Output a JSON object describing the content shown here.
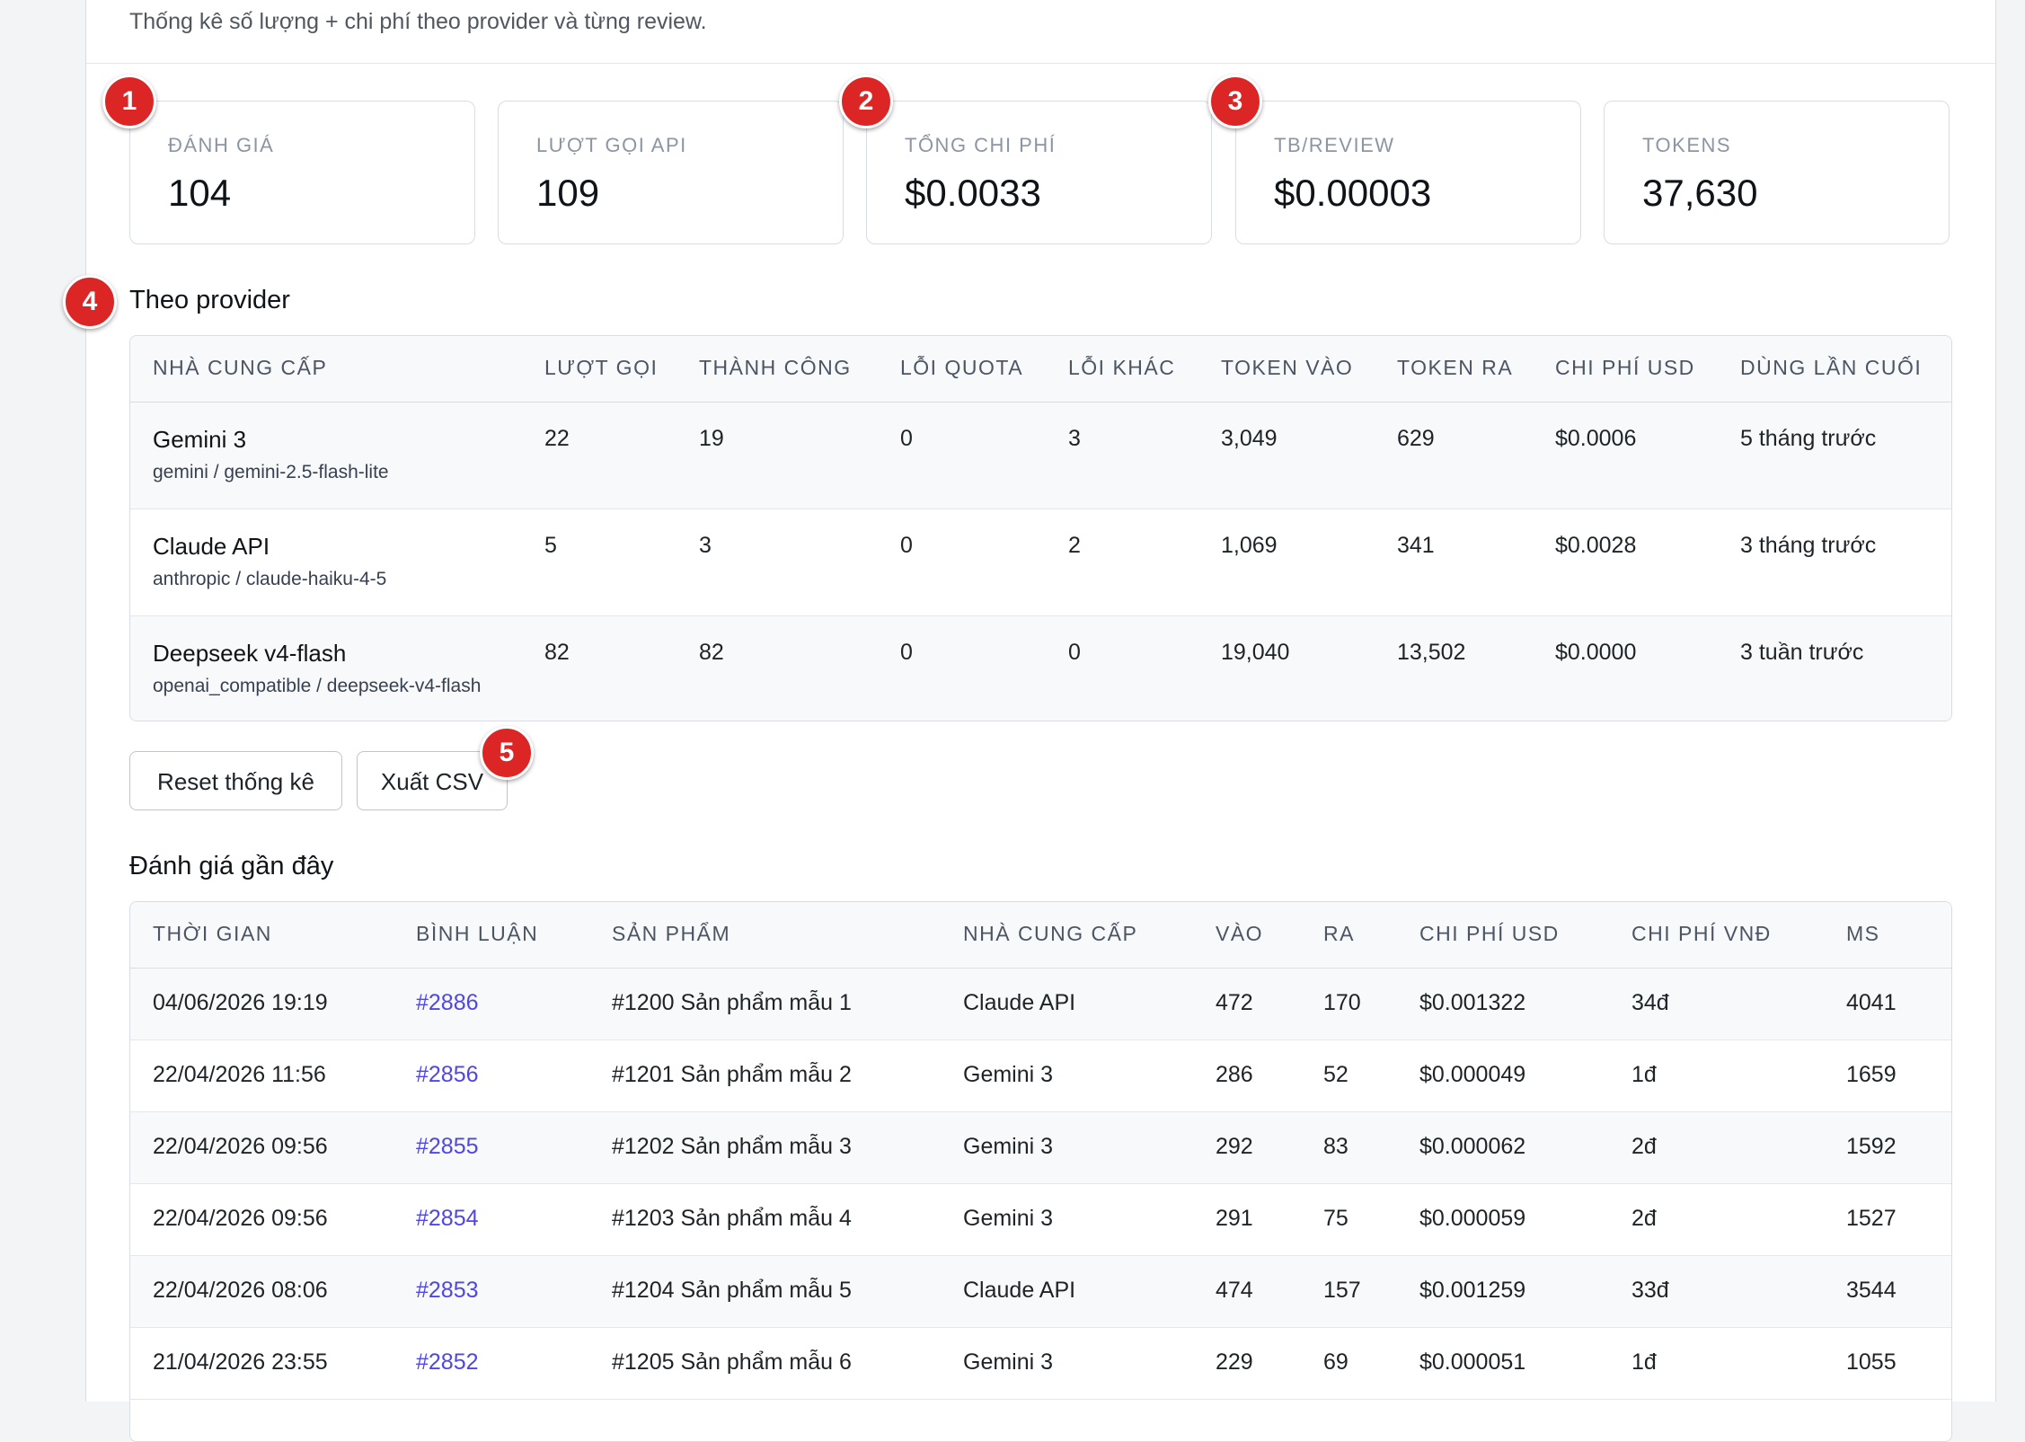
{
  "header": {
    "subtitle": "Thống kê số lượng + chi phí theo provider và từng review."
  },
  "stats": [
    {
      "label": "ĐÁNH GIÁ",
      "value": "104"
    },
    {
      "label": "LƯỢT GỌI API",
      "value": "109"
    },
    {
      "label": "TỔNG CHI PHÍ",
      "value": "$0.0033"
    },
    {
      "label": "TB/REVIEW",
      "value": "$0.00003"
    },
    {
      "label": "TOKENS",
      "value": "37,630"
    }
  ],
  "badges": [
    "1",
    "2",
    "3",
    "4",
    "5"
  ],
  "providers": {
    "title": "Theo provider",
    "columns": [
      "NHÀ CUNG CẤP",
      "LƯỢT GỌI",
      "THÀNH CÔNG",
      "LỖI QUOTA",
      "LỖI KHÁC",
      "TOKEN VÀO",
      "TOKEN RA",
      "CHI PHÍ USD",
      "DÙNG LẦN CUỐI"
    ],
    "rows": [
      {
        "name": "Gemini 3",
        "sub": "gemini / gemini-2.5-flash-lite",
        "calls": "22",
        "success": "19",
        "quota_err": "0",
        "other_err": "3",
        "token_in": "3,049",
        "token_out": "629",
        "cost": "$0.0006",
        "last": "5 tháng trước"
      },
      {
        "name": "Claude API",
        "sub": "anthropic / claude-haiku-4-5",
        "calls": "5",
        "success": "3",
        "quota_err": "0",
        "other_err": "2",
        "token_in": "1,069",
        "token_out": "341",
        "cost": "$0.0028",
        "last": "3 tháng trước"
      },
      {
        "name": "Deepseek v4-flash",
        "sub": "openai_compatible / deepseek-v4-flash",
        "calls": "82",
        "success": "82",
        "quota_err": "0",
        "other_err": "0",
        "token_in": "19,040",
        "token_out": "13,502",
        "cost": "$0.0000",
        "last": "3 tuần trước"
      }
    ]
  },
  "actions": {
    "reset_label": "Reset thống kê",
    "export_label": "Xuất CSV"
  },
  "recent": {
    "title": "Đánh giá gần đây",
    "columns": [
      "THỜI GIAN",
      "BÌNH LUẬN",
      "SẢN PHẨM",
      "NHÀ CUNG CẤP",
      "VÀO",
      "RA",
      "CHI PHÍ USD",
      "CHI PHÍ VNĐ",
      "MS"
    ],
    "rows": [
      {
        "time": "04/06/2026 19:19",
        "comment": "#2886",
        "product": "#1200 Sản phẩm mẫu 1",
        "provider": "Claude API",
        "in": "472",
        "out": "170",
        "usd": "$0.001322",
        "vnd": "34đ",
        "ms": "4041"
      },
      {
        "time": "22/04/2026 11:56",
        "comment": "#2856",
        "product": "#1201 Sản phẩm mẫu 2",
        "provider": "Gemini 3",
        "in": "286",
        "out": "52",
        "usd": "$0.000049",
        "vnd": "1đ",
        "ms": "1659"
      },
      {
        "time": "22/04/2026 09:56",
        "comment": "#2855",
        "product": "#1202 Sản phẩm mẫu 3",
        "provider": "Gemini 3",
        "in": "292",
        "out": "83",
        "usd": "$0.000062",
        "vnd": "2đ",
        "ms": "1592"
      },
      {
        "time": "22/04/2026 09:56",
        "comment": "#2854",
        "product": "#1203 Sản phẩm mẫu 4",
        "provider": "Gemini 3",
        "in": "291",
        "out": "75",
        "usd": "$0.000059",
        "vnd": "2đ",
        "ms": "1527"
      },
      {
        "time": "22/04/2026 08:06",
        "comment": "#2853",
        "product": "#1204 Sản phẩm mẫu 5",
        "provider": "Claude API",
        "in": "474",
        "out": "157",
        "usd": "$0.001259",
        "vnd": "33đ",
        "ms": "3544"
      },
      {
        "time": "21/04/2026 23:55",
        "comment": "#2852",
        "product": "#1205 Sản phẩm mẫu 6",
        "provider": "Gemini 3",
        "in": "229",
        "out": "69",
        "usd": "$0.000051",
        "vnd": "1đ",
        "ms": "1055"
      }
    ]
  }
}
